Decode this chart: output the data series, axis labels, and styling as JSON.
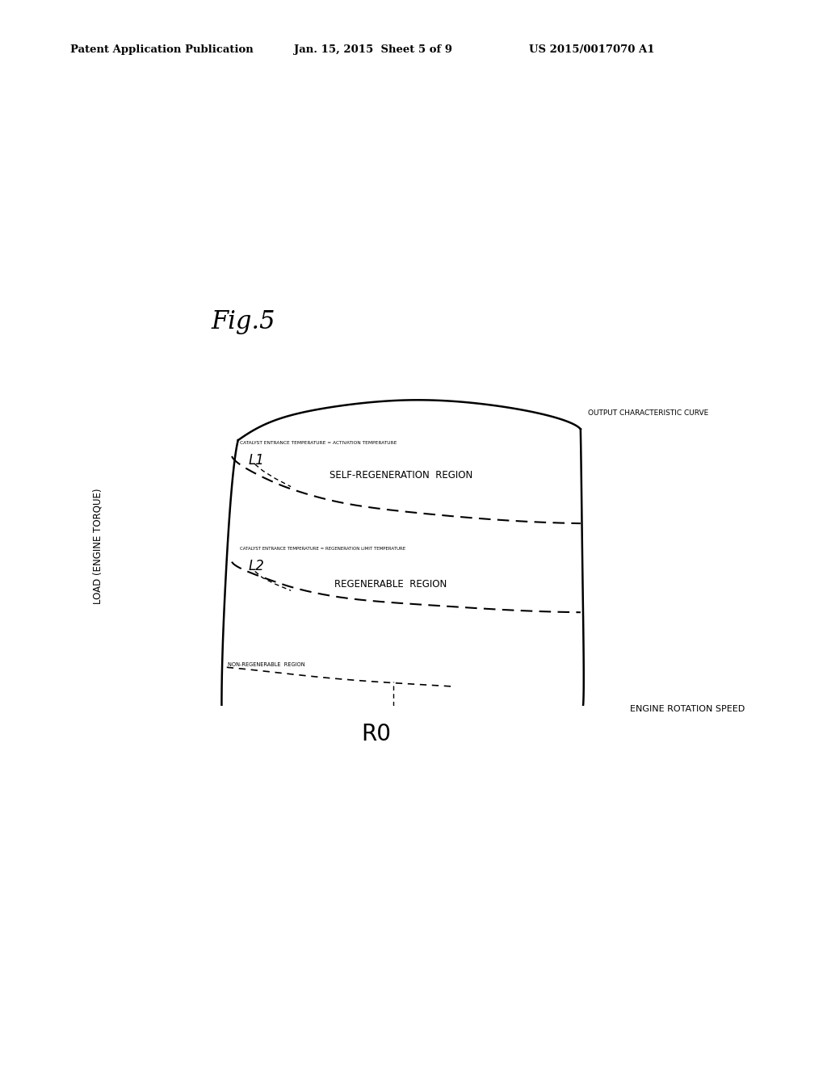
{
  "fig_label": "Fig.5",
  "header_left": "Patent Application Publication",
  "header_center": "Jan. 15, 2015  Sheet 5 of 9",
  "header_right": "US 2015/0017070 A1",
  "ylabel": "LOAD (ENGINE TORQUE)",
  "xlabel": "ENGINE ROTATION SPEED",
  "x0_label": "R0",
  "output_curve_label": "OUTPUT CHARACTERISTIC CURVE",
  "L1_label": "L1",
  "L2_label": "L2",
  "L1_text": "CATALYST ENTRANCE TEMPERATURE = ACTIVATION TEMPERATURE",
  "L2_text": "CATALYST ENTRANCE TEMPERATURE = REGENERATION LIMIT TEMPERATURE",
  "region1": "SELF-REGENERATION  REGION",
  "region2": "REGENERABLE  REGION",
  "region3": "NON-REGENERABLE  REGION",
  "bg_color": "#ffffff",
  "line_color": "#000000"
}
